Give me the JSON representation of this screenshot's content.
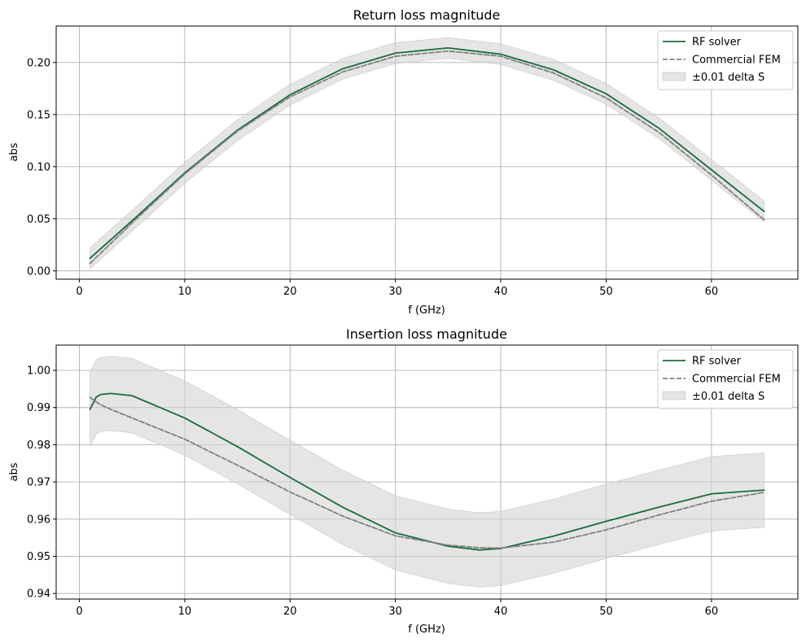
{
  "chart_data": [
    {
      "type": "line",
      "title": "Return loss magnitude",
      "xlabel": "f (GHz)",
      "ylabel": "abs",
      "xlim": [
        -2.2,
        68.2
      ],
      "ylim": [
        -0.008,
        0.235
      ],
      "xticks": [
        0,
        10,
        20,
        30,
        40,
        50,
        60
      ],
      "xtick_labels": [
        "0",
        "10",
        "20",
        "30",
        "40",
        "50",
        "60"
      ],
      "yticks": [
        0.0,
        0.05,
        0.1,
        0.15,
        0.2
      ],
      "ytick_labels": [
        "0.00",
        "0.05",
        "0.10",
        "0.15",
        "0.20"
      ],
      "grid": true,
      "legend_position": "top-right",
      "band_halfwidth": 0.01,
      "x": [
        1,
        5,
        10,
        15,
        20,
        25,
        30,
        35,
        40,
        45,
        50,
        55,
        60,
        65
      ],
      "series": [
        {
          "name": "RF solver",
          "style": "solid",
          "color": "#1a6b3c",
          "values": [
            0.012,
            0.048,
            0.094,
            0.135,
            0.169,
            0.194,
            0.209,
            0.214,
            0.208,
            0.193,
            0.17,
            0.137,
            0.097,
            0.057
          ]
        },
        {
          "name": "Commercial FEM",
          "style": "dashed",
          "color": "#808080",
          "values": [
            0.007,
            0.046,
            0.093,
            0.134,
            0.167,
            0.191,
            0.206,
            0.211,
            0.206,
            0.19,
            0.166,
            0.133,
            0.092,
            0.049
          ]
        }
      ],
      "band": {
        "name": "±0.01 delta S",
        "color": "#d3d3d3"
      }
    },
    {
      "type": "line",
      "title": "Insertion loss magnitude",
      "xlabel": "f (GHz)",
      "ylabel": "abs",
      "xlim": [
        -2.2,
        68.2
      ],
      "ylim": [
        0.9385,
        1.0068
      ],
      "xticks": [
        0,
        10,
        20,
        30,
        40,
        50,
        60
      ],
      "xtick_labels": [
        "0",
        "10",
        "20",
        "30",
        "40",
        "50",
        "60"
      ],
      "yticks": [
        0.94,
        0.95,
        0.96,
        0.97,
        0.98,
        0.99,
        1.0
      ],
      "ytick_labels": [
        "0.94",
        "0.95",
        "0.96",
        "0.97",
        "0.98",
        "0.99",
        "1.00"
      ],
      "grid": true,
      "legend_position": "top-right",
      "band_halfwidth": 0.01,
      "x": [
        1,
        1.6,
        2,
        3,
        5,
        10,
        15,
        20,
        25,
        30,
        35,
        38,
        40,
        45,
        50,
        55,
        60,
        65
      ],
      "series": [
        {
          "name": "RF solver",
          "style": "solid",
          "color": "#1a6b3c",
          "values": [
            0.9895,
            0.9928,
            0.9935,
            0.9938,
            0.9932,
            0.9872,
            0.9795,
            0.9712,
            0.9632,
            0.9563,
            0.9527,
            0.9517,
            0.9521,
            0.9554,
            0.9594,
            0.9632,
            0.9668,
            0.9678
          ]
        },
        {
          "name": "Commercial FEM",
          "style": "dashed",
          "color": "#808080",
          "values": [
            0.9928,
            0.9915,
            0.9908,
            0.9895,
            0.9872,
            0.9815,
            0.9745,
            0.9673,
            0.9608,
            0.9555,
            0.953,
            0.9523,
            0.9522,
            0.9538,
            0.9571,
            0.9611,
            0.9648,
            0.9672
          ]
        }
      ],
      "band": {
        "name": "±0.01 delta S",
        "color": "#d3d3d3"
      }
    }
  ]
}
